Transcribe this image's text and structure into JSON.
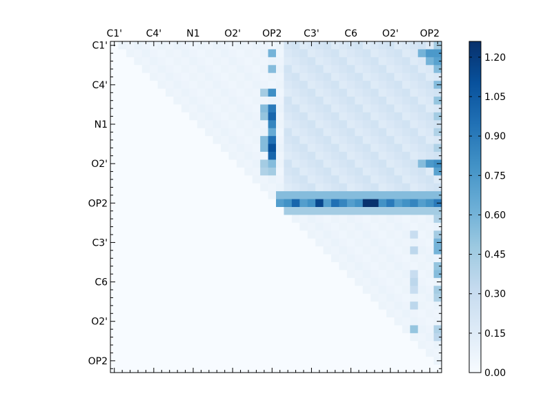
{
  "chart_data": {
    "type": "heatmap",
    "title": "",
    "xlabel": "",
    "ylabel": "",
    "n": 42,
    "labelled_indices": [
      0,
      5,
      10,
      15,
      20,
      25,
      30,
      35,
      40
    ],
    "x_tick_labels": [
      "C1'",
      "C4'",
      "N1",
      "O2'",
      "OP2",
      "C3'",
      "C6",
      "O2'",
      "OP2"
    ],
    "y_tick_labels": [
      "C1'",
      "C4'",
      "N1",
      "O2'",
      "OP2",
      "C3'",
      "C6",
      "O2'",
      "OP2"
    ],
    "x_tick_position": "top",
    "colormap": {
      "name": "Blues",
      "stops": [
        "#f7fbff",
        "#deebf7",
        "#c6dbef",
        "#9ecae1",
        "#6baed6",
        "#4292c6",
        "#2171b5",
        "#08519c",
        "#08306b"
      ]
    },
    "colorbar": {
      "range": [
        0.0,
        1.26
      ],
      "ticks": [
        0.0,
        0.15,
        0.3,
        0.45,
        0.6,
        0.75,
        0.9,
        1.05,
        1.2
      ],
      "tick_labels": [
        "0.00",
        "0.15",
        "0.30",
        "0.45",
        "0.60",
        "0.75",
        "0.90",
        "1.05",
        "1.20"
      ],
      "position": "right"
    },
    "values_note": "upper-triangular matrix; base values with highlighted rows/columns",
    "matrix_rules": {
      "default_upper": 0.08,
      "block_upper_right_rows": [
        0,
        20
      ],
      "block_upper_right_cols": [
        22,
        41
      ],
      "block_upper_right_value": 0.2,
      "strong_row": 20,
      "strong_row_value": 0.85,
      "strong_row_peaks": [
        [
          23,
          1.0
        ],
        [
          26,
          1.15
        ],
        [
          28,
          0.95
        ],
        [
          32,
          1.25
        ],
        [
          33,
          1.25
        ],
        [
          35,
          0.9
        ],
        [
          41,
          0.9
        ]
      ],
      "row_19_value": 0.55,
      "row_21_value": 0.45,
      "strong_col": 20,
      "strong_col_values": [
        [
          1,
          0.6
        ],
        [
          3,
          0.55
        ],
        [
          6,
          0.8
        ],
        [
          8,
          0.9
        ],
        [
          9,
          1.0
        ],
        [
          10,
          0.85
        ],
        [
          11,
          0.65
        ],
        [
          12,
          0.95
        ],
        [
          13,
          1.1
        ],
        [
          14,
          1.0
        ],
        [
          15,
          0.55
        ],
        [
          16,
          0.45
        ]
      ],
      "col_19_values": [
        [
          6,
          0.45
        ],
        [
          8,
          0.55
        ],
        [
          9,
          0.5
        ],
        [
          12,
          0.55
        ],
        [
          13,
          0.55
        ],
        [
          15,
          0.45
        ],
        [
          16,
          0.4
        ]
      ],
      "row_15_values": [
        [
          39,
          0.55
        ],
        [
          40,
          0.75
        ],
        [
          41,
          0.8
        ]
      ],
      "row_1_values": [
        [
          39,
          0.6
        ],
        [
          40,
          0.75
        ],
        [
          41,
          0.75
        ]
      ],
      "row_2_values": [
        [
          40,
          0.6
        ],
        [
          41,
          0.7
        ]
      ],
      "last_col_values": [
        [
          0,
          0.45
        ],
        [
          3,
          0.55
        ],
        [
          5,
          0.55
        ],
        [
          7,
          0.5
        ],
        [
          9,
          0.45
        ],
        [
          11,
          0.4
        ],
        [
          13,
          0.4
        ],
        [
          16,
          0.7
        ],
        [
          22,
          0.4
        ],
        [
          25,
          0.6
        ],
        [
          28,
          0.5
        ],
        [
          31,
          0.45
        ],
        [
          32,
          0.7
        ],
        [
          36,
          0.4
        ],
        [
          37,
          0.35
        ]
      ],
      "col_38_values": [
        [
          24,
          0.3
        ],
        [
          26,
          0.35
        ],
        [
          29,
          0.3
        ],
        [
          30,
          0.35
        ],
        [
          31,
          0.3
        ],
        [
          33,
          0.35
        ],
        [
          36,
          0.5
        ]
      ],
      "col_41_values": [
        [
          24,
          0.45
        ],
        [
          26,
          0.6
        ],
        [
          29,
          0.55
        ],
        [
          32,
          0.4
        ]
      ]
    }
  }
}
